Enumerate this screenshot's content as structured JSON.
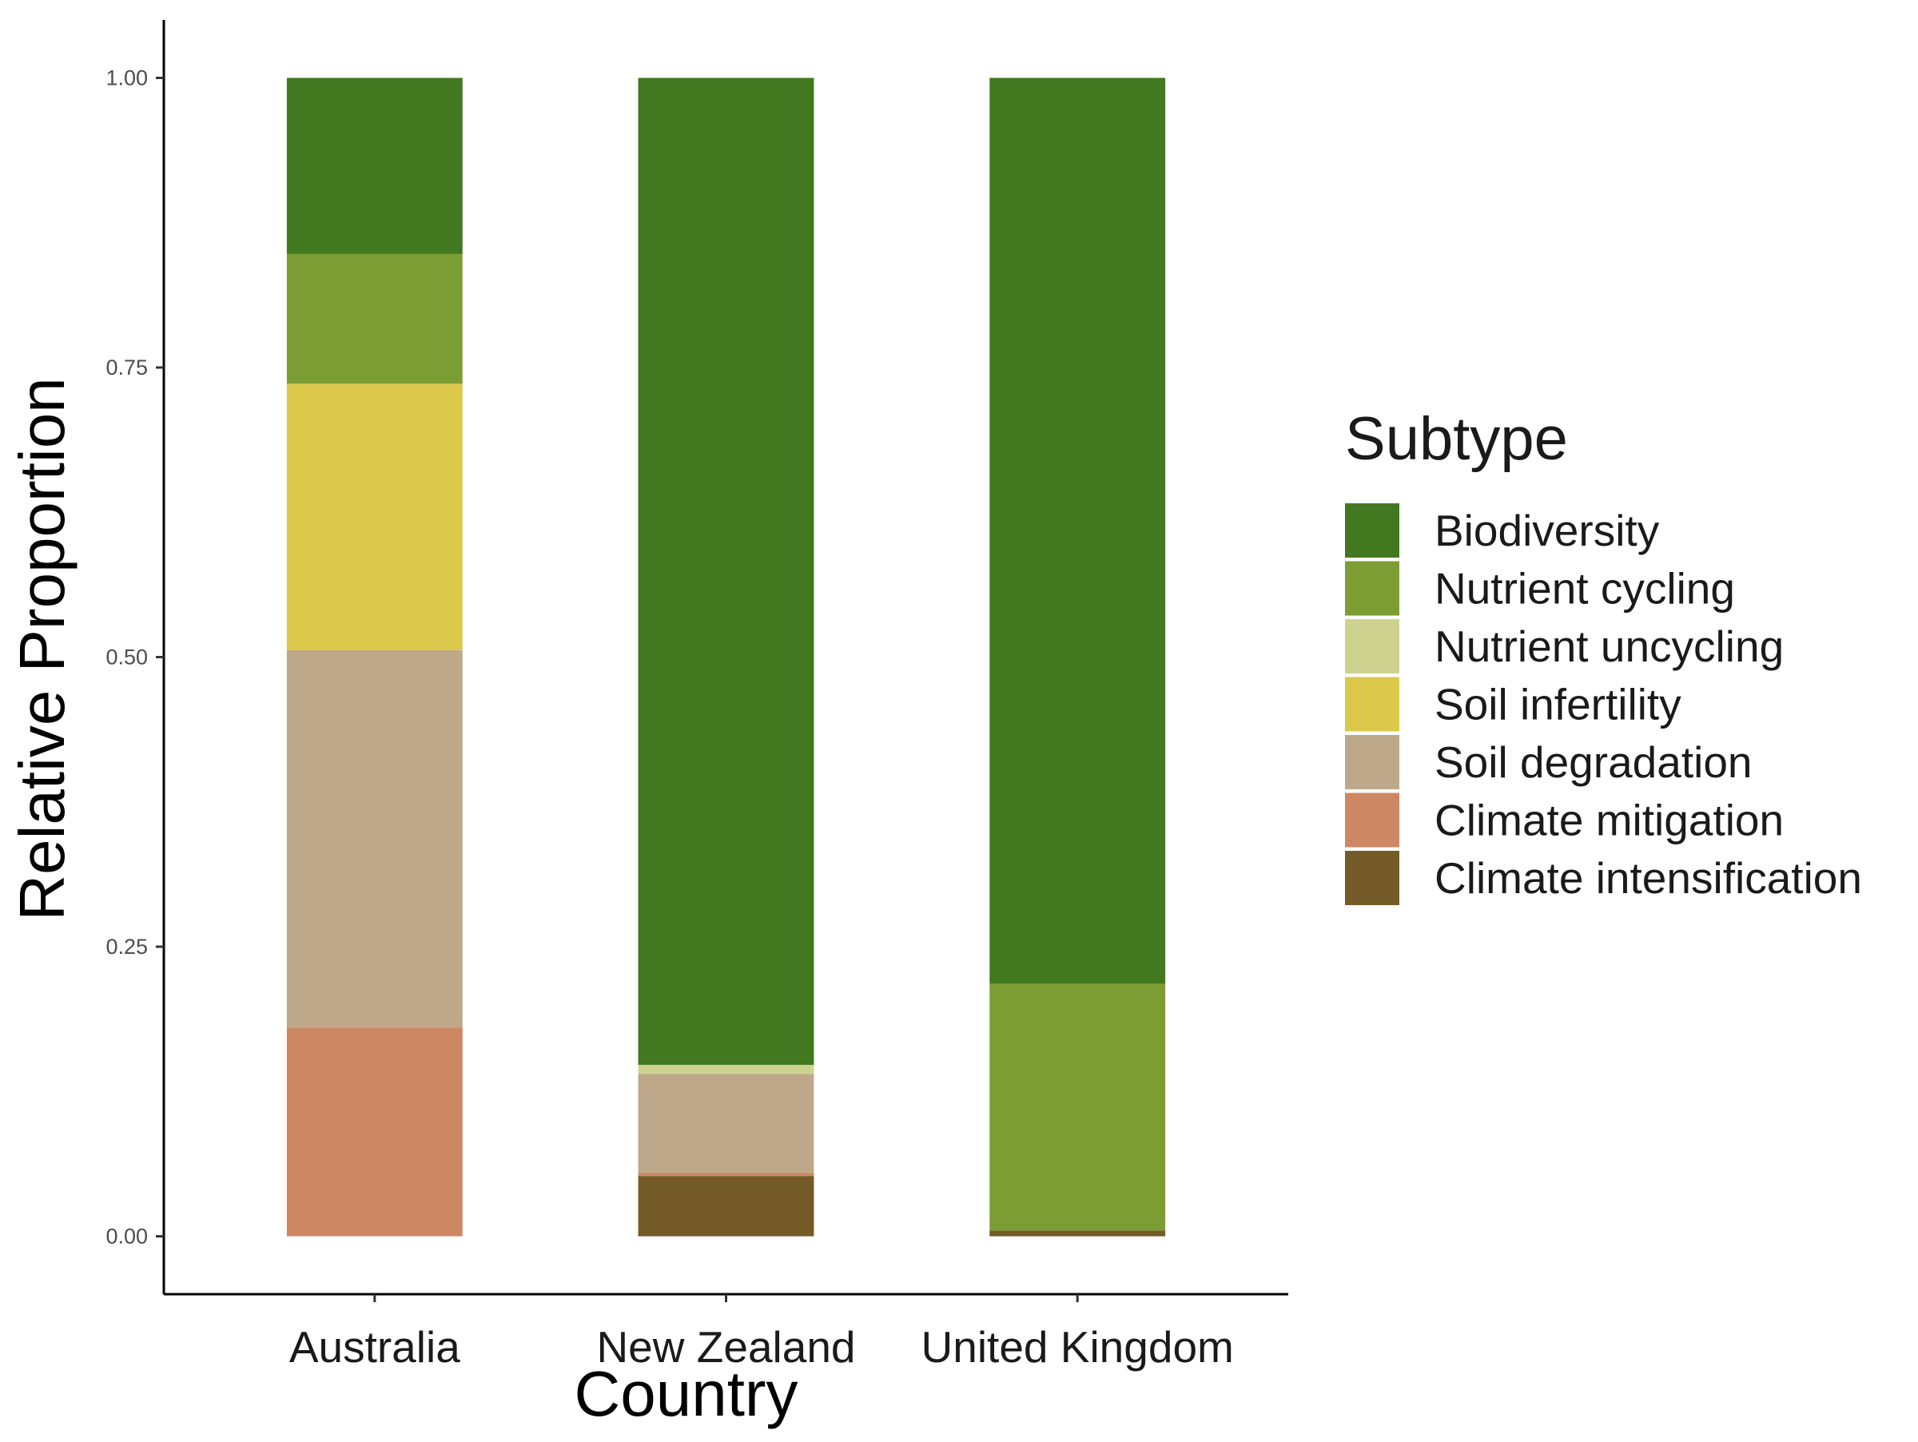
{
  "chart_data": {
    "type": "bar",
    "stacked": true,
    "xlabel": "Country",
    "ylabel": "Relative Proportion",
    "categories": [
      "Australia",
      "New Zealand",
      "United Kingdom"
    ],
    "ylim": [
      -0.05,
      1.05
    ],
    "yticks": [
      "0.00",
      "0.25",
      "0.50",
      "0.75",
      "1.00"
    ],
    "grid": false,
    "legend": {
      "title": "Subtype",
      "placement": "right"
    },
    "series": [
      {
        "name": "Climate intensification",
        "color": "#735A26",
        "values": [
          0.0,
          0.052,
          0.005
        ]
      },
      {
        "name": "Climate mitigation",
        "color": "#CE8763",
        "values": [
          0.18,
          0.003,
          0.0
        ]
      },
      {
        "name": "Soil degradation",
        "color": "#BEA88A",
        "values": [
          0.326,
          0.085,
          0.0
        ]
      },
      {
        "name": "Soil infertility",
        "color": "#DCC84A",
        "values": [
          0.23,
          0.0,
          0.0
        ]
      },
      {
        "name": "Nutrient uncycling",
        "color": "#CDD38E",
        "values": [
          0.0,
          0.008,
          0.0
        ]
      },
      {
        "name": "Nutrient cycling",
        "color": "#7C9D33",
        "values": [
          0.112,
          0.0,
          0.213
        ]
      },
      {
        "name": "Biodiversity",
        "color": "#42781F",
        "values": [
          0.152,
          0.852,
          0.782
        ]
      }
    ]
  }
}
